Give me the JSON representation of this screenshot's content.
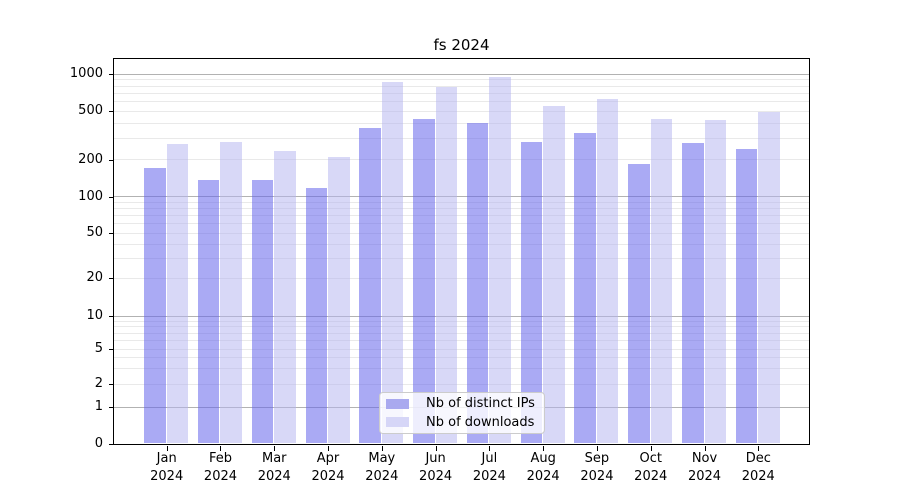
{
  "chart_data": {
    "type": "bar",
    "title": "fs 2024",
    "categories": [
      "Jan",
      "Feb",
      "Mar",
      "Apr",
      "May",
      "Jun",
      "Jul",
      "Aug",
      "Sep",
      "Oct",
      "Nov",
      "Dec"
    ],
    "category_year": "2024",
    "series": [
      {
        "name": "Nb of distinct IPs",
        "color": "rgba(100,100,235,0.55)",
        "legend_color": "#a9a9ef",
        "values": [
          170,
          135,
          135,
          116,
          362,
          430,
          395,
          278,
          328,
          184,
          270,
          245
        ]
      },
      {
        "name": "Nb of downloads",
        "color": "rgba(180,180,240,0.52)",
        "legend_color": "#d6d6f7",
        "values": [
          265,
          280,
          233,
          208,
          860,
          785,
          950,
          548,
          625,
          430,
          420,
          485
        ]
      }
    ],
    "yscale": "symlog",
    "yticks": [
      1000,
      500,
      200,
      100,
      50,
      20,
      10,
      5,
      2,
      1,
      0
    ],
    "ylim": [
      0,
      1320
    ],
    "grid": true,
    "legend_position": "lower center",
    "colors": {
      "major_grid": "#b2b2b2",
      "minor_grid": "#e9e9e9",
      "axis": "#000000",
      "text": "#000000",
      "background": "#ffffff"
    }
  }
}
